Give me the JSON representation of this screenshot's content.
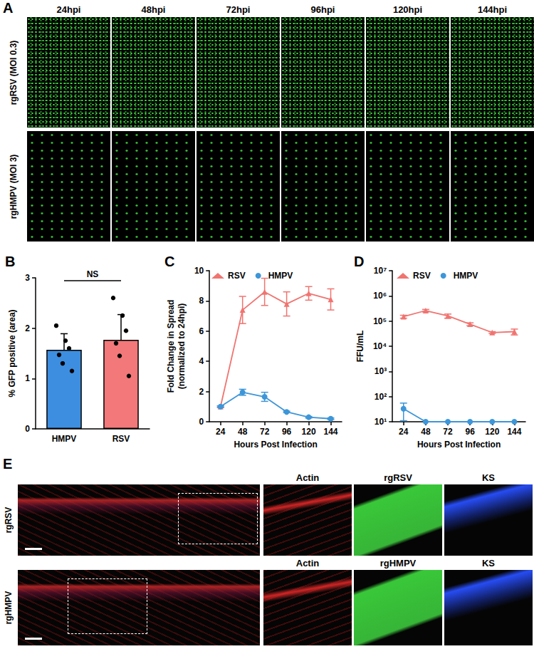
{
  "panel_A": {
    "label": "A",
    "columns": [
      "24hpi",
      "48hpi",
      "72hpi",
      "96hpi",
      "120hpi",
      "144hpi"
    ],
    "rows": [
      "rgRSV (MOI 0.3)",
      "rgHMPV (MOI 3)"
    ]
  },
  "chart_data": [
    {
      "type": "bar",
      "title": "B",
      "categories": [
        "HMPV",
        "RSV"
      ],
      "values": [
        1.57,
        1.77
      ],
      "errors": [
        0.32,
        0.5
      ],
      "points": [
        [
          2.05,
          1.75,
          1.6,
          1.47,
          1.3,
          1.15
        ],
        [
          2.6,
          2.25,
          1.95,
          1.7,
          1.45,
          1.05
        ]
      ],
      "colors": [
        "#3d8ee0",
        "#f2787a"
      ],
      "ylabel": "% GFP positive (area)",
      "annotation": "NS",
      "ylim": [
        0,
        3
      ],
      "yticks": [
        0,
        1,
        2,
        3
      ],
      "grid": false
    },
    {
      "type": "line",
      "title": "C",
      "xlabel": "Hours Post Infection",
      "ylabel": "Fold Change in Spread\n(normalized to 24hpi)",
      "categories": [
        "24",
        "48",
        "72",
        "96",
        "120",
        "144"
      ],
      "series": [
        {
          "name": "RSV",
          "color": "#f07470",
          "marker": "triangle",
          "values": [
            1,
            7.4,
            8.6,
            7.8,
            8.5,
            8.1
          ],
          "errors": [
            0.05,
            0.9,
            0.9,
            0.8,
            0.45,
            0.7
          ]
        },
        {
          "name": "HMPV",
          "color": "#3d96d8",
          "marker": "circle",
          "values": [
            1,
            1.95,
            1.65,
            0.65,
            0.3,
            0.2
          ],
          "errors": [
            0.05,
            0.2,
            0.3,
            0.05,
            0.05,
            0.05
          ]
        }
      ],
      "ylim": [
        0,
        10
      ],
      "yticks": [
        0,
        2,
        4,
        6,
        8,
        10
      ],
      "legend": "upper left",
      "grid": false
    },
    {
      "type": "line",
      "title": "D",
      "xlabel": "Hours Post Infection",
      "ylabel": "FFU/mL",
      "categories": [
        "24",
        "48",
        "72",
        "96",
        "120",
        "144"
      ],
      "series": [
        {
          "name": "RSV",
          "color": "#f07470",
          "marker": "triangle",
          "values": [
            150000,
            260000,
            160000,
            75000,
            35000,
            38000
          ],
          "errors": [
            20000,
            30000,
            30000,
            10000,
            3000,
            10000
          ]
        },
        {
          "name": "HMPV",
          "color": "#3d96d8",
          "marker": "circle",
          "values": [
            33,
            10,
            10,
            10,
            10,
            10
          ],
          "errors": [
            22,
            0,
            0,
            0,
            0,
            0
          ]
        }
      ],
      "log": "y",
      "ylim": [
        10,
        10000000
      ],
      "yticks": [
        {
          "value": 10,
          "label": "10¹"
        },
        {
          "value": 100,
          "label": "10²"
        },
        {
          "value": 1000,
          "label": "10³"
        },
        {
          "value": 10000,
          "label": "10⁴"
        },
        {
          "value": 100000,
          "label": "10⁵"
        },
        {
          "value": 1000000,
          "label": "10⁶"
        },
        {
          "value": 10000000,
          "label": "10⁷"
        }
      ],
      "legend": "upper left",
      "grid": false
    }
  ],
  "panel_E": {
    "label": "E",
    "rows": [
      {
        "label": "rgRSV",
        "columns": [
          "Actin",
          "rgRSV",
          "KS"
        ]
      },
      {
        "label": "rgHMPV",
        "columns": [
          "Actin",
          "rgHMPV",
          "KS"
        ]
      }
    ]
  }
}
